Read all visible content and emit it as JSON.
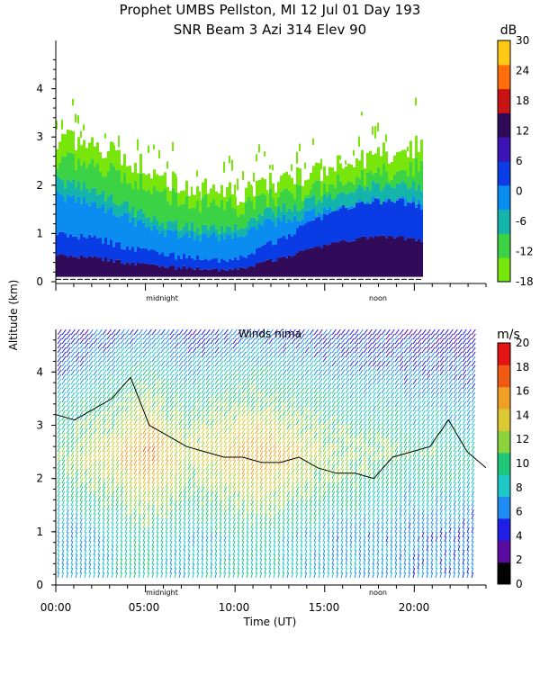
{
  "header": {
    "title_line1": "Prophet  UMBS Pellston, MI  12 Jul 01 Day 193",
    "title_line2": "SNR Beam 3 Azi 314 Elev 90"
  },
  "axes": {
    "ylabel": "Altitude (km)",
    "xlabel": "Time (UT)",
    "xtick_labels": [
      "00:00",
      "05:00",
      "10:00",
      "15:00",
      "20:00"
    ],
    "marker_midnight": "midnight",
    "marker_noon": "noon"
  },
  "colorbars": {
    "snr": {
      "unit": "dB",
      "tick_labels": [
        "-18",
        "-12",
        "-6",
        "0",
        "6",
        "12",
        "18",
        "24",
        "30"
      ],
      "colors": [
        "#78e60a",
        "#3cd246",
        "#14b4aa",
        "#0a8cf0",
        "#0a3ce6",
        "#3c14b4",
        "#320a5a",
        "#c81414",
        "#ff6e0a",
        "#ffc814"
      ]
    },
    "wind": {
      "unit": "m/s",
      "tick_labels": [
        "0",
        "2",
        "4",
        "6",
        "8",
        "10",
        "12",
        "14",
        "16",
        "18",
        "20"
      ],
      "colors": [
        "#000000",
        "#5a0aa0",
        "#1e1ee6",
        "#1e8cf0",
        "#1ec8c8",
        "#1ec878",
        "#8cd23c",
        "#dcc832",
        "#f0a028",
        "#f05a14",
        "#e61414"
      ]
    }
  },
  "chart_data": [
    {
      "type": "heatmap",
      "title": "",
      "ylabel": "Altitude (km)",
      "colorbar_label": "dB",
      "x_unit": "hours UT",
      "xlim": [
        0,
        24
      ],
      "ylim": [
        0,
        5
      ],
      "yticks": [
        0,
        1,
        2,
        3,
        4
      ],
      "zlim": [
        -18,
        36
      ],
      "layers": [
        {
          "name": "band -18 to -6 dB",
          "top_km": [
            3.0,
            2.9,
            2.8,
            2.7,
            2.5,
            2.3,
            2.1,
            2.0,
            1.9,
            1.9,
            1.8,
            2.0,
            2.1,
            2.2,
            2.3,
            2.4,
            2.5,
            2.6,
            2.7,
            2.8,
            2.8,
            2.6,
            2.3,
            2.0
          ]
        },
        {
          "name": "band -6 to 6 dB",
          "top_km": [
            2.1,
            2.0,
            1.9,
            1.7,
            1.5,
            1.3,
            1.2,
            1.15,
            1.1,
            1.1,
            1.2,
            1.4,
            1.5,
            1.6,
            1.7,
            1.8,
            1.9,
            2.0,
            2.0,
            2.0,
            2.0,
            1.9,
            1.8,
            1.7
          ]
        },
        {
          "name": "band 6 to 18 dB",
          "top_km": [
            1.0,
            0.95,
            0.9,
            0.8,
            0.7,
            0.6,
            0.55,
            0.5,
            0.45,
            0.4,
            0.5,
            0.7,
            0.9,
            1.1,
            1.3,
            1.5,
            1.6,
            1.7,
            1.7,
            1.6,
            1.5,
            1.5,
            1.4,
            1.3
          ]
        }
      ]
    },
    {
      "type": "scatter",
      "title": "Winds nima",
      "xlabel": "Time (UT)",
      "ylabel": "Altitude (km)",
      "colorbar_label": "m/s",
      "x_unit": "hours UT",
      "xlim": [
        0,
        24
      ],
      "ylim": [
        0,
        4.8
      ],
      "yticks": [
        0,
        1,
        2,
        3,
        4
      ],
      "zlim": [
        0,
        22
      ],
      "speed_max_profile_ms": [
        11,
        12,
        13,
        14,
        16,
        17,
        15,
        13,
        14,
        15,
        16,
        16,
        15,
        14,
        13,
        12,
        12,
        11,
        11,
        10,
        10,
        10,
        9,
        8
      ],
      "contour_10ms_km": [
        3.2,
        3.1,
        3.3,
        3.5,
        3.9,
        3.0,
        2.8,
        2.6,
        2.5,
        2.4,
        2.4,
        2.3,
        2.3,
        2.4,
        2.2,
        2.1,
        2.1,
        2.0,
        2.4,
        2.5,
        2.6,
        3.1,
        2.5,
        2.2
      ]
    }
  ]
}
